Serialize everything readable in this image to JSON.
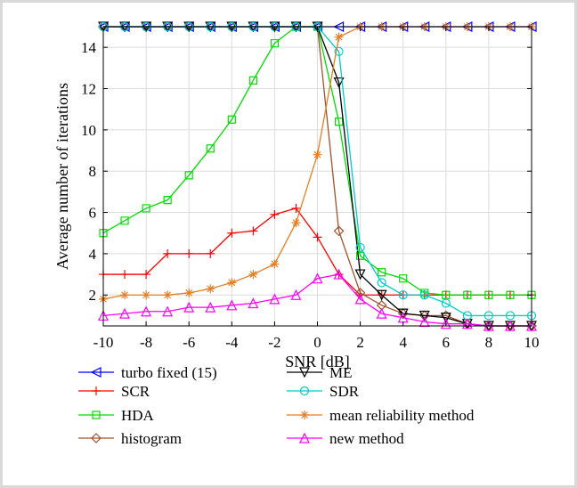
{
  "chart_data": {
    "type": "line",
    "xlabel": "SNR [dB]",
    "ylabel": "Average number of iterations",
    "xlim": [
      -10,
      10
    ],
    "ylim": [
      0.5,
      15
    ],
    "xticks": [
      -10,
      -8,
      -6,
      -4,
      -2,
      0,
      2,
      4,
      6,
      8,
      10
    ],
    "xtick_labels": [
      "-10",
      "-8",
      "-6",
      "-4",
      "-2",
      "0",
      "2",
      "4",
      "6",
      "8",
      "10"
    ],
    "yticks": [
      2,
      4,
      6,
      8,
      10,
      12,
      14
    ],
    "ytick_labels": [
      "2",
      "4",
      "6",
      "8",
      "10",
      "12",
      "14"
    ],
    "grid": true,
    "legend_position": "bottom",
    "x": [
      -10,
      -9,
      -8,
      -7,
      -6,
      -5,
      -4,
      -3,
      -2,
      -1,
      0,
      1,
      2,
      3,
      4,
      5,
      6,
      7,
      8,
      9,
      10
    ],
    "series": [
      {
        "name": "turbo fixed (15)",
        "color": "#0000ff",
        "marker": "triangle-left",
        "values": [
          15,
          15,
          15,
          15,
          15,
          15,
          15,
          15,
          15,
          15,
          15,
          15,
          15,
          15,
          15,
          15,
          15,
          15,
          15,
          15,
          15
        ]
      },
      {
        "name": "SCR",
        "color": "#ff0000",
        "marker": "plus",
        "values": [
          3,
          3,
          3,
          4,
          4,
          4,
          5,
          5.1,
          5.9,
          6.2,
          4.8,
          3,
          2,
          2,
          2,
          2,
          2,
          2,
          2,
          2,
          2
        ]
      },
      {
        "name": "HDA",
        "color": "#00dd00",
        "marker": "square",
        "values": [
          5.0,
          5.6,
          6.2,
          6.6,
          7.8,
          9.1,
          10.5,
          12.4,
          14.2,
          15,
          15,
          10.4,
          3.9,
          3.1,
          2.8,
          2.1,
          2.0,
          2.0,
          2.0,
          2.0,
          2.0
        ]
      },
      {
        "name": "histogram",
        "color": "#a0522d",
        "marker": "diamond",
        "values": [
          15,
          15,
          15,
          15,
          15,
          15,
          15,
          15,
          15,
          15,
          15,
          5.1,
          2.1,
          1.5,
          1.1,
          1.0,
          1.0,
          0.6,
          0.5,
          0.5,
          0.5
        ]
      },
      {
        "name": "ME",
        "color": "#000000",
        "marker": "triangle-down",
        "values": [
          15,
          15,
          15,
          15,
          15,
          15,
          15,
          15,
          15,
          15,
          15,
          12.3,
          3.0,
          2.0,
          1.1,
          1.0,
          0.9,
          0.6,
          0.5,
          0.5,
          0.5
        ]
      },
      {
        "name": "SDR",
        "color": "#00cccc",
        "marker": "circle",
        "values": [
          15,
          15,
          15,
          15,
          15,
          15,
          15,
          15,
          15,
          15,
          15,
          13.8,
          4.3,
          2.6,
          2.0,
          2.0,
          1.6,
          1.0,
          1.0,
          1.0,
          1.0
        ]
      },
      {
        "name": "mean reliability method",
        "color": "#e67e22",
        "marker": "asterisk",
        "values": [
          1.8,
          2.0,
          2.0,
          2.0,
          2.1,
          2.3,
          2.6,
          3.0,
          3.5,
          5.5,
          8.8,
          14.5,
          15,
          15,
          15,
          15,
          15,
          15,
          15,
          15,
          15
        ]
      },
      {
        "name": "new method",
        "color": "#ff00ff",
        "marker": "triangle-up",
        "values": [
          1.0,
          1.1,
          1.2,
          1.2,
          1.4,
          1.4,
          1.5,
          1.6,
          1.8,
          2.0,
          2.8,
          3.0,
          1.8,
          1.1,
          0.9,
          0.7,
          0.6,
          0.6,
          0.5,
          0.5,
          0.5
        ]
      }
    ],
    "legend_order": [
      0,
      4,
      1,
      5,
      2,
      6,
      3,
      7
    ]
  }
}
